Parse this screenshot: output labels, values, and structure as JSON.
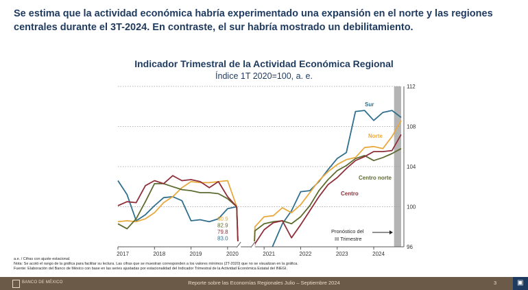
{
  "headline": {
    "line1": "Se estima que la actividad económica habría experimentado una expansión en el norte y las regiones",
    "line2": "centrales durante el 3T-2024. En contraste, el sur habría mostrado un debilitamiento."
  },
  "chart_data": {
    "type": "line",
    "title": "Indicador Trimestral de la Actividad Económica Regional",
    "subtitle": "Índice 1T 2020=100, a. e.",
    "ylim": [
      96,
      112
    ],
    "yticks": [
      96,
      100,
      104,
      108,
      112
    ],
    "xlim": [
      2017.0,
      2024.75
    ],
    "xticks": [
      2017,
      2018,
      2019,
      2020,
      2021,
      2022,
      2023,
      2024
    ],
    "grid": "horizontal dotted",
    "series": [
      {
        "name": "Sur",
        "color": "#2f6e8e",
        "pre": [
          [
            2017.0,
            102.6
          ],
          [
            2017.25,
            101.2
          ],
          [
            2017.5,
            98.6
          ],
          [
            2017.75,
            99.2
          ],
          [
            2018.0,
            100.1
          ],
          [
            2018.25,
            100.9
          ],
          [
            2018.5,
            101.0
          ],
          [
            2018.75,
            100.6
          ],
          [
            2019.0,
            98.6
          ],
          [
            2019.25,
            98.7
          ],
          [
            2019.5,
            98.5
          ],
          [
            2019.75,
            98.8
          ],
          [
            2020.0,
            99.8
          ],
          [
            2020.25,
            100.0
          ]
        ],
        "post": [
          [
            2021.25,
            96.2
          ],
          [
            2021.5,
            98.3
          ],
          [
            2021.75,
            99.6
          ],
          [
            2022.0,
            101.5
          ],
          [
            2022.25,
            101.6
          ],
          [
            2022.5,
            102.5
          ],
          [
            2022.75,
            103.7
          ],
          [
            2023.0,
            104.8
          ],
          [
            2023.25,
            105.4
          ],
          [
            2023.5,
            109.5
          ],
          [
            2023.75,
            109.6
          ],
          [
            2024.0,
            108.6
          ],
          [
            2024.25,
            109.4
          ],
          [
            2024.5,
            109.6
          ],
          [
            2024.75,
            108.9
          ]
        ]
      },
      {
        "name": "Norte",
        "color": "#e8a93c",
        "pre": [
          [
            2017.0,
            98.5
          ],
          [
            2017.25,
            98.6
          ],
          [
            2017.5,
            98.5
          ],
          [
            2017.75,
            98.8
          ],
          [
            2018.0,
            99.4
          ],
          [
            2018.25,
            100.4
          ],
          [
            2018.5,
            101.0
          ],
          [
            2018.75,
            101.9
          ],
          [
            2019.0,
            102.5
          ],
          [
            2019.25,
            102.4
          ],
          [
            2019.5,
            102.4
          ],
          [
            2019.75,
            102.5
          ],
          [
            2020.0,
            102.6
          ],
          [
            2020.25,
            100.0
          ]
        ],
        "post": [
          [
            2020.75,
            98.0
          ],
          [
            2021.0,
            99.0
          ],
          [
            2021.25,
            99.1
          ],
          [
            2021.5,
            99.9
          ],
          [
            2021.75,
            99.4
          ],
          [
            2022.0,
            100.2
          ],
          [
            2022.25,
            101.4
          ],
          [
            2022.5,
            102.6
          ],
          [
            2022.75,
            103.5
          ],
          [
            2023.0,
            104.2
          ],
          [
            2023.25,
            104.7
          ],
          [
            2023.5,
            104.9
          ],
          [
            2023.75,
            105.9
          ],
          [
            2024.0,
            106.0
          ],
          [
            2024.25,
            105.8
          ],
          [
            2024.5,
            107.0
          ],
          [
            2024.75,
            108.6
          ]
        ]
      },
      {
        "name": "Centro norte",
        "color": "#5d6b2f",
        "pre": [
          [
            2017.0,
            98.3
          ],
          [
            2017.25,
            97.8
          ],
          [
            2017.5,
            98.8
          ],
          [
            2017.75,
            100.5
          ],
          [
            2018.0,
            102.3
          ],
          [
            2018.25,
            102.3
          ],
          [
            2018.5,
            102.0
          ],
          [
            2018.75,
            101.7
          ],
          [
            2019.0,
            101.6
          ],
          [
            2019.25,
            101.4
          ],
          [
            2019.5,
            101.4
          ],
          [
            2019.75,
            101.3
          ],
          [
            2020.0,
            100.8
          ],
          [
            2020.25,
            100.0
          ]
        ],
        "post": [
          [
            2020.75,
            97.6
          ],
          [
            2021.0,
            98.3
          ],
          [
            2021.25,
            98.5
          ],
          [
            2021.5,
            98.6
          ],
          [
            2021.75,
            98.3
          ],
          [
            2022.0,
            99.0
          ],
          [
            2022.25,
            100.1
          ],
          [
            2022.5,
            101.6
          ],
          [
            2022.75,
            102.7
          ],
          [
            2023.0,
            103.6
          ],
          [
            2023.25,
            104.1
          ],
          [
            2023.5,
            104.8
          ],
          [
            2023.75,
            105.1
          ],
          [
            2024.0,
            104.6
          ],
          [
            2024.25,
            104.9
          ],
          [
            2024.5,
            105.3
          ],
          [
            2024.75,
            105.8
          ]
        ]
      },
      {
        "name": "Centro",
        "color": "#8e2f3a",
        "pre": [
          [
            2017.0,
            100.1
          ],
          [
            2017.25,
            100.5
          ],
          [
            2017.5,
            100.4
          ],
          [
            2017.75,
            102.1
          ],
          [
            2018.0,
            102.6
          ],
          [
            2018.25,
            102.3
          ],
          [
            2018.5,
            103.1
          ],
          [
            2018.75,
            102.6
          ],
          [
            2019.0,
            102.7
          ],
          [
            2019.25,
            102.5
          ],
          [
            2019.5,
            101.9
          ],
          [
            2019.75,
            102.5
          ],
          [
            2020.0,
            101.0
          ],
          [
            2020.25,
            100.0
          ]
        ],
        "post": [
          [
            2020.75,
            96.3
          ],
          [
            2021.0,
            97.7
          ],
          [
            2021.25,
            98.4
          ],
          [
            2021.5,
            98.6
          ],
          [
            2021.75,
            96.9
          ],
          [
            2022.0,
            98.2
          ],
          [
            2022.25,
            99.6
          ],
          [
            2022.5,
            101.0
          ],
          [
            2022.75,
            102.2
          ],
          [
            2023.0,
            102.9
          ],
          [
            2023.25,
            103.8
          ],
          [
            2023.5,
            104.6
          ],
          [
            2023.75,
            105.0
          ],
          [
            2024.0,
            105.5
          ],
          [
            2024.25,
            105.5
          ],
          [
            2024.5,
            105.6
          ],
          [
            2024.75,
            107.2
          ]
        ]
      }
    ],
    "covid_values": [
      {
        "label": "80.9",
        "color": "#e8a93c"
      },
      {
        "label": "82.9",
        "color": "#5d6b2f"
      },
      {
        "label": "79.8",
        "color": "#8e2f3a"
      },
      {
        "label": "83.0",
        "color": "#2f6e8e"
      }
    ],
    "annotation": {
      "line1": "Pronóstico del",
      "line2": "III Trimestre"
    }
  },
  "notes": {
    "line1": "a.e. / Cifras con ajuste estacional.",
    "line2": "Nota: Se acotó el rango de la gráfica para facilitar su lectura. Las cifras que se muestran corresponden a los valores mínimos (2T-2020) que no se visualizan en la gráfica.",
    "line3": "Fuente: Elaboración del Banco de México con base en las series ajustadas por estacionalidad del Indicador Trimestral de la Actividad Económica Estatal del INEGI."
  },
  "footer": {
    "brand": "BANCO DE MÉXICO",
    "report": "Reporte sobre las Economías Regionales Julio – Septiembre 2024",
    "page": "3",
    "corner_icon": "seal-icon"
  }
}
